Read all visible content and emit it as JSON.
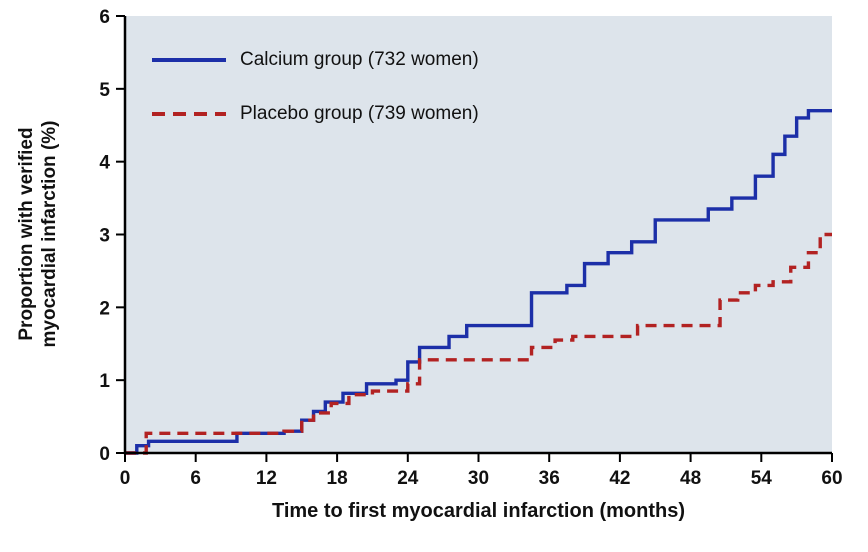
{
  "chart_data": {
    "type": "line",
    "subtype": "step",
    "title": "",
    "xlabel": "Time to first myocardial infarction (months)",
    "ylabel": "Proportion with verified myocardial infarction (%)",
    "ylabel_lines": [
      "Proportion with verified",
      "myocardial  infarction (%)"
    ],
    "xlim": [
      0,
      60
    ],
    "ylim": [
      0,
      6
    ],
    "x_ticks": [
      0,
      6,
      12,
      18,
      24,
      30,
      36,
      42,
      48,
      54,
      60
    ],
    "y_ticks": [
      0,
      1,
      2,
      3,
      4,
      5,
      6
    ],
    "grid": false,
    "legend_position": "top-left",
    "colors": {
      "plot_bg": "#dde4eb",
      "axis": "#000000",
      "text": "#111111",
      "calcium_blue": "#1c2fa8",
      "placebo_red": "#b22222"
    },
    "series": [
      {
        "name": "Calcium group (732 women)",
        "color": "#1c2fa8",
        "style": "solid",
        "points": [
          [
            0,
            0
          ],
          [
            1,
            0.1
          ],
          [
            2,
            0.16
          ],
          [
            9.5,
            0.27
          ],
          [
            13.5,
            0.3
          ],
          [
            15,
            0.45
          ],
          [
            16,
            0.57
          ],
          [
            17,
            0.7
          ],
          [
            18.5,
            0.82
          ],
          [
            20.5,
            0.95
          ],
          [
            23,
            1.0
          ],
          [
            24,
            1.25
          ],
          [
            25,
            1.45
          ],
          [
            27.5,
            1.6
          ],
          [
            29,
            1.75
          ],
          [
            34.5,
            2.2
          ],
          [
            37.5,
            2.3
          ],
          [
            39,
            2.6
          ],
          [
            41,
            2.75
          ],
          [
            43,
            2.9
          ],
          [
            45,
            3.2
          ],
          [
            49.5,
            3.35
          ],
          [
            51.5,
            3.5
          ],
          [
            53.5,
            3.8
          ],
          [
            55,
            4.1
          ],
          [
            56,
            4.35
          ],
          [
            57,
            4.6
          ],
          [
            58,
            4.7
          ],
          [
            60,
            4.7
          ]
        ]
      },
      {
        "name": "Placebo group (739 women)",
        "color": "#b22222",
        "style": "dashed",
        "points": [
          [
            0,
            0
          ],
          [
            1.8,
            0.27
          ],
          [
            13.5,
            0.3
          ],
          [
            15,
            0.45
          ],
          [
            16,
            0.55
          ],
          [
            17.5,
            0.68
          ],
          [
            19,
            0.8
          ],
          [
            21,
            0.85
          ],
          [
            24,
            0.95
          ],
          [
            25,
            1.28
          ],
          [
            34.5,
            1.45
          ],
          [
            36.5,
            1.55
          ],
          [
            38,
            1.6
          ],
          [
            43.5,
            1.75
          ],
          [
            50.5,
            2.1
          ],
          [
            52,
            2.2
          ],
          [
            53.5,
            2.3
          ],
          [
            55,
            2.35
          ],
          [
            56.5,
            2.55
          ],
          [
            58,
            2.75
          ],
          [
            59,
            3.0
          ],
          [
            60,
            3.0
          ]
        ]
      }
    ]
  }
}
